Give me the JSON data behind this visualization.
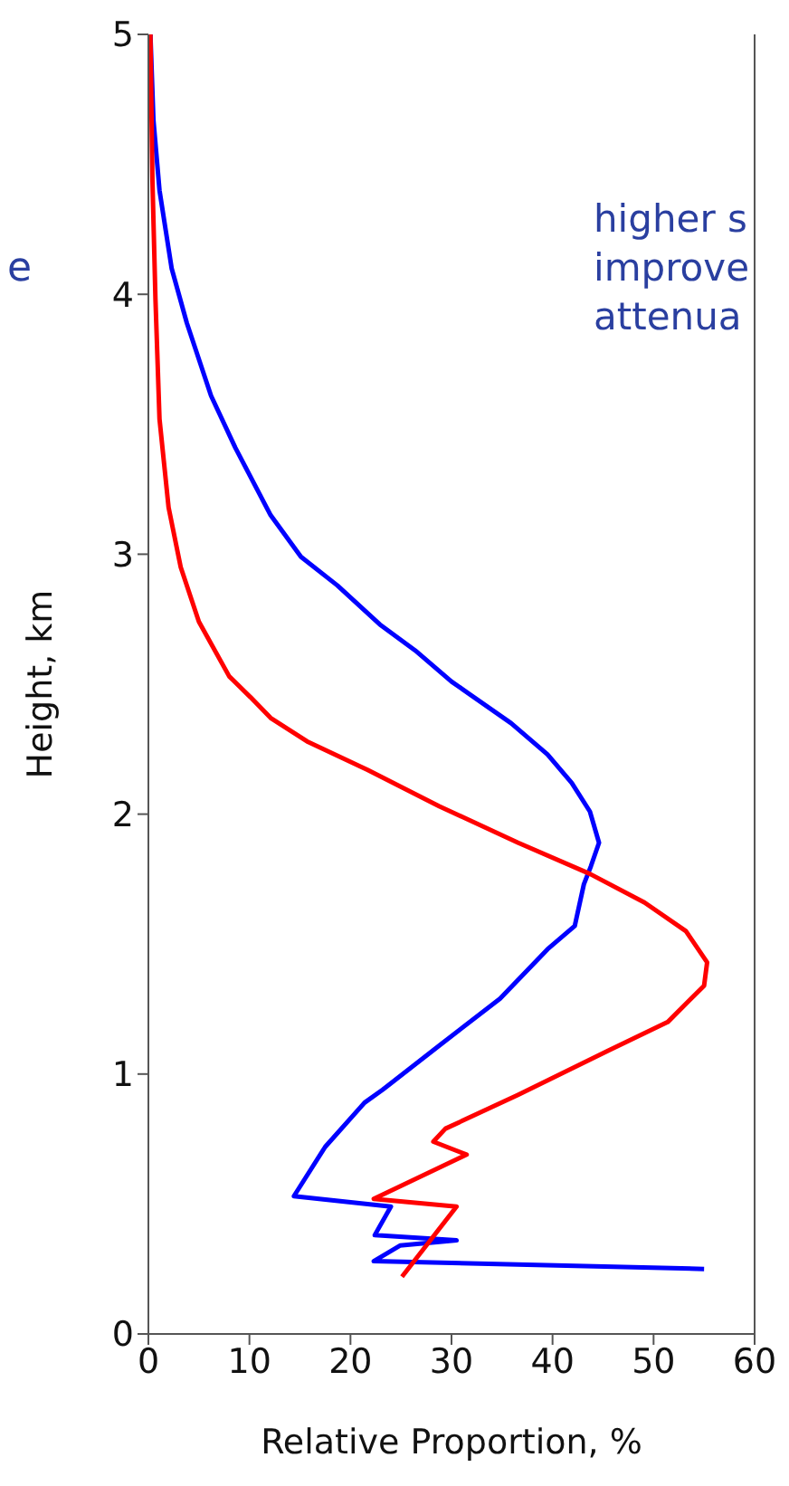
{
  "chart_data": {
    "type": "line",
    "xlabel": "Relative Proportion, %",
    "ylabel": "Height, km",
    "annotations": [
      "e",
      "higher s",
      "improve",
      "attenua"
    ],
    "xlim": [
      0,
      60
    ],
    "xticks": [
      0,
      10,
      20,
      30,
      40,
      50,
      60
    ],
    "ylim": [
      0,
      5
    ],
    "yticks": [
      0,
      1,
      2,
      3,
      4,
      5
    ],
    "grid": false,
    "marker": "none",
    "line_style": "solid",
    "series": [
      {
        "color": "#0000ff",
        "x": [
          55.0,
          22.3,
          24.9,
          30.5,
          22.4,
          24.0,
          14.4,
          17.5,
          21.4,
          23.2,
          28.8,
          34.8,
          39.5,
          42.2,
          43.1,
          43.8,
          44.6,
          43.7,
          41.9,
          39.5,
          35.9,
          30.0,
          26.4,
          22.9,
          18.7,
          15.1,
          12.1,
          8.6,
          6.2,
          3.8,
          2.3,
          1.1,
          0.5,
          0.2
        ],
        "values": [
          0.25,
          0.28,
          0.34,
          0.36,
          0.38,
          0.49,
          0.53,
          0.72,
          0.89,
          0.94,
          1.11,
          1.29,
          1.48,
          1.57,
          1.73,
          1.8,
          1.89,
          2.01,
          2.12,
          2.23,
          2.35,
          2.51,
          2.63,
          2.73,
          2.88,
          2.99,
          3.15,
          3.41,
          3.61,
          3.89,
          4.1,
          4.4,
          4.67,
          5.0
        ]
      },
      {
        "color": "#ff0000",
        "x": [
          25.1,
          30.5,
          22.3,
          31.5,
          28.2,
          29.4,
          36.6,
          45.5,
          51.4,
          55.0,
          55.3,
          53.2,
          49.1,
          43.7,
          36.6,
          28.8,
          21.7,
          15.7,
          12.1,
          10.1,
          8.0,
          5.0,
          3.2,
          2.0,
          1.1,
          0.7,
          0.4,
          0.2
        ],
        "values": [
          0.22,
          0.49,
          0.52,
          0.69,
          0.74,
          0.79,
          0.92,
          1.09,
          1.2,
          1.34,
          1.43,
          1.55,
          1.66,
          1.77,
          1.89,
          2.03,
          2.17,
          2.28,
          2.37,
          2.45,
          2.53,
          2.74,
          2.95,
          3.18,
          3.52,
          3.98,
          4.44,
          5.0
        ]
      }
    ]
  }
}
